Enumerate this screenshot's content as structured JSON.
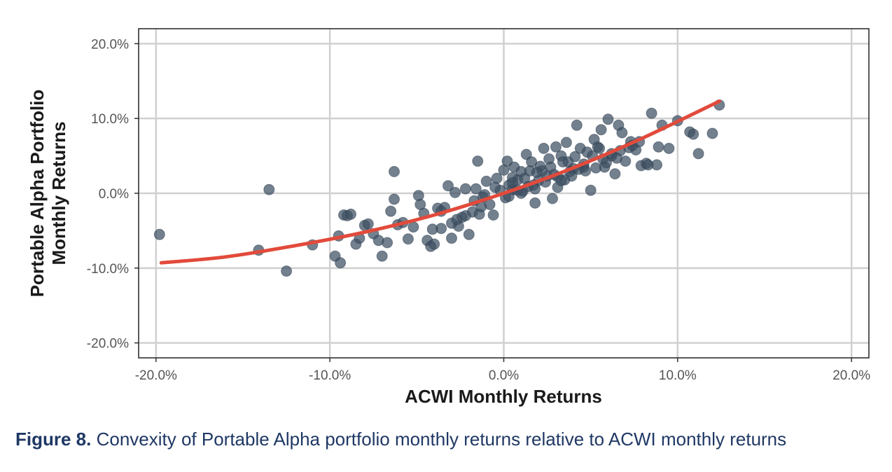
{
  "chart_data": {
    "type": "scatter",
    "xlabel": "ACWI Monthly Returns",
    "ylabel_lines": [
      "Portable Alpha Portfolio",
      "Monthly Returns"
    ],
    "xlim": [
      -0.21,
      0.21
    ],
    "ylim": [
      -0.22,
      0.22
    ],
    "x_ticks": [
      -0.2,
      -0.1,
      0.0,
      0.1,
      0.2
    ],
    "x_tick_labels": [
      "-20.0%",
      "-10.0%",
      "0.0%",
      "10.0%",
      "20.0%"
    ],
    "y_ticks": [
      0.2,
      0.1,
      0.0,
      -0.1,
      -0.2
    ],
    "y_tick_labels": [
      "20.0%",
      "10.0%",
      "0.0%",
      "-10.0%",
      "-20.0%"
    ],
    "grid": true,
    "point_color": "#3d4f63",
    "fit_color": "#e24a3b",
    "fit_curve": {
      "x": [
        -0.197,
        -0.16,
        -0.12,
        -0.08,
        -0.04,
        0.0,
        0.04,
        0.08,
        0.124
      ],
      "y": [
        -0.093,
        -0.085,
        -0.07,
        -0.052,
        -0.029,
        0.0,
        0.034,
        0.074,
        0.123
      ]
    },
    "points": {
      "x": [
        -0.198,
        -0.141,
        -0.135,
        -0.125,
        -0.11,
        -0.097,
        -0.095,
        -0.094,
        -0.092,
        -0.09,
        -0.088,
        -0.085,
        -0.083,
        -0.08,
        -0.078,
        -0.075,
        -0.072,
        -0.07,
        -0.067,
        -0.065,
        -0.063,
        -0.061,
        -0.058,
        -0.055,
        -0.052,
        -0.049,
        -0.046,
        -0.044,
        -0.042,
        -0.04,
        -0.038,
        -0.036,
        -0.034,
        -0.032,
        -0.03,
        -0.028,
        -0.026,
        -0.024,
        -0.022,
        -0.02,
        -0.018,
        -0.016,
        -0.015,
        -0.014,
        -0.012,
        -0.01,
        -0.008,
        -0.006,
        -0.004,
        -0.002,
        0.0,
        0.002,
        0.003,
        0.005,
        0.006,
        0.008,
        0.01,
        0.011,
        0.013,
        0.015,
        0.016,
        0.018,
        0.02,
        0.021,
        0.023,
        0.025,
        0.026,
        0.028,
        0.03,
        0.031,
        0.033,
        0.035,
        0.036,
        0.038,
        0.04,
        0.042,
        0.044,
        0.046,
        0.048,
        0.05,
        0.052,
        0.054,
        0.056,
        0.058,
        0.06,
        0.062,
        0.064,
        0.066,
        0.068,
        0.07,
        0.073,
        0.076,
        0.079,
        0.082,
        0.085,
        0.088,
        0.091,
        0.095,
        0.1,
        0.107,
        0.112,
        0.12,
        0.124,
        -0.063,
        -0.048,
        -0.03,
        -0.017,
        0.005,
        0.022,
        0.037,
        0.051,
        0.055,
        0.074,
        0.083,
        0.089,
        0.005,
        0.012,
        0.019,
        0.027,
        0.034,
        0.041,
        -0.005,
        -0.011,
        0.017,
        0.024,
        0.031,
        0.046,
        0.057,
        0.062,
        -0.027,
        -0.036,
        -0.041,
        0.001,
        0.008,
        0.014,
        0.029,
        0.043,
        0.067,
        0.072,
        0.078,
        -0.022,
        -0.013,
        0.003,
        0.01,
        0.018,
        0.033,
        0.039,
        0.047,
        0.053,
        0.059,
        0.065,
        0.109
      ],
      "y": [
        -0.055,
        -0.076,
        0.005,
        -0.104,
        -0.069,
        -0.084,
        -0.057,
        -0.093,
        -0.029,
        -0.03,
        -0.028,
        -0.068,
        -0.06,
        -0.043,
        -0.041,
        -0.054,
        -0.063,
        -0.084,
        -0.066,
        -0.024,
        0.029,
        -0.042,
        -0.039,
        -0.061,
        -0.045,
        -0.003,
        -0.027,
        -0.063,
        -0.071,
        -0.068,
        -0.02,
        -0.047,
        -0.019,
        0.01,
        -0.06,
        0.001,
        -0.044,
        -0.032,
        0.006,
        -0.055,
        -0.025,
        0.006,
        0.043,
        -0.028,
        -0.005,
        0.016,
        -0.015,
        -0.029,
        0.02,
        0.004,
        0.031,
        0.043,
        0.011,
        0.005,
        0.035,
        0.018,
        0.029,
        0.003,
        0.052,
        0.03,
        0.042,
        -0.013,
        0.017,
        0.036,
        0.06,
        0.023,
        0.046,
        -0.007,
        0.062,
        0.008,
        0.05,
        0.018,
        0.068,
        0.029,
        0.033,
        0.091,
        0.06,
        0.035,
        0.055,
        0.004,
        0.072,
        0.062,
        0.085,
        0.035,
        0.099,
        0.05,
        0.026,
        0.091,
        0.081,
        0.043,
        0.069,
        0.058,
        0.037,
        0.04,
        0.107,
        0.038,
        0.091,
        0.06,
        0.097,
        0.082,
        0.053,
        0.08,
        0.118,
        -0.008,
        -0.015,
        -0.04,
        -0.01,
        0.021,
        0.03,
        0.042,
        0.05,
        0.06,
        0.064,
        0.038,
        0.062,
        0.014,
        0.02,
        0.028,
        0.035,
        0.042,
        0.049,
        0.008,
        -0.002,
        0.011,
        0.015,
        0.022,
        0.039,
        0.046,
        0.053,
        -0.035,
        -0.024,
        -0.048,
        -0.006,
        0.004,
        0.009,
        0.025,
        0.032,
        0.057,
        0.061,
        0.069,
        -0.03,
        -0.018,
        -0.004,
        0.0,
        0.006,
        0.017,
        0.023,
        0.03,
        0.034,
        0.041,
        0.047,
        0.079
      ]
    }
  },
  "caption": {
    "label": "Figure 8.",
    "text": " Convexity of Portable Alpha portfolio monthly returns relative to ACWI monthly returns"
  }
}
